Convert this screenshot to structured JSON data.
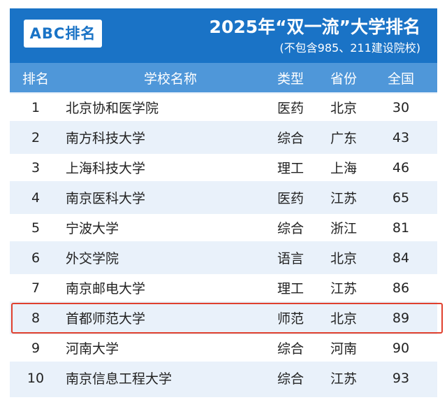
{
  "header": {
    "badge": "ABC排名",
    "title": "2025年“双一流”大学排名",
    "subtitle": "(不包含985、211建设院校)"
  },
  "columns": {
    "rank": "排名",
    "name": "学校名称",
    "type": "类型",
    "province": "省份",
    "score": "全国"
  },
  "rows": [
    {
      "rank": "1",
      "name": "北京协和医学院",
      "type": "医药",
      "province": "北京",
      "score": "30"
    },
    {
      "rank": "2",
      "name": "南方科技大学",
      "type": "综合",
      "province": "广东",
      "score": "43"
    },
    {
      "rank": "3",
      "name": "上海科技大学",
      "type": "理工",
      "province": "上海",
      "score": "46"
    },
    {
      "rank": "4",
      "name": "南京医科大学",
      "type": "医药",
      "province": "江苏",
      "score": "65"
    },
    {
      "rank": "5",
      "name": "宁波大学",
      "type": "综合",
      "province": "浙江",
      "score": "81"
    },
    {
      "rank": "6",
      "name": "外交学院",
      "type": "语言",
      "province": "北京",
      "score": "84"
    },
    {
      "rank": "7",
      "name": "南京邮电大学",
      "type": "理工",
      "province": "江苏",
      "score": "86"
    },
    {
      "rank": "8",
      "name": "首都师范大学",
      "type": "师范",
      "province": "北京",
      "score": "89"
    },
    {
      "rank": "9",
      "name": "河南大学",
      "type": "综合",
      "province": "河南",
      "score": "90"
    },
    {
      "rank": "10",
      "name": "南京信息工程大学",
      "type": "综合",
      "province": "江苏",
      "score": "93"
    }
  ],
  "highlighted_rank": "8",
  "colors": {
    "header": "#1a73c6",
    "column_header": "#4f97d9",
    "row_alt": "#e9f1fa",
    "highlight_border": "#e0402e"
  }
}
